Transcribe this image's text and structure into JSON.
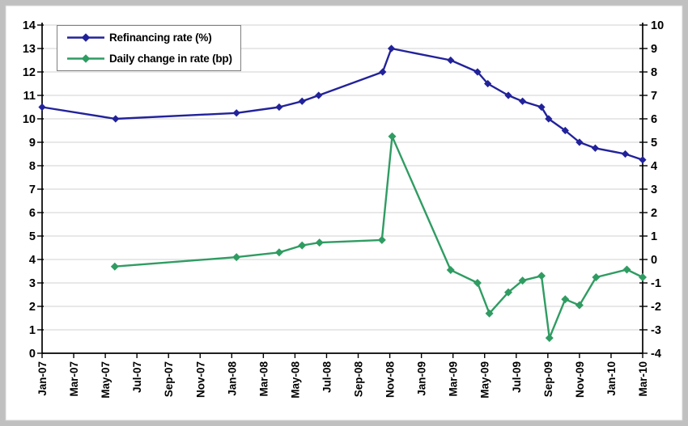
{
  "chart_data": {
    "type": "line",
    "title": "",
    "xlabel": "",
    "ylabel_left": "",
    "ylabel_right": "",
    "grid": "horizontal",
    "legend_position": "top-left",
    "x_axis": {
      "tick_labels": [
        "Jan-07",
        "Mar-07",
        "May-07",
        "Jul-07",
        "Sep-07",
        "Nov-07",
        "Jan-08",
        "Mar-08",
        "May-08",
        "Jul-08",
        "Sep-08",
        "Nov-08",
        "Jan-09",
        "Mar-09",
        "May-09",
        "Jul-09",
        "Sep-09",
        "Nov-09",
        "Jan-10",
        "Mar-10"
      ],
      "tick_interval_months": 2,
      "span_months": 38
    },
    "left_axis": {
      "min": 0,
      "max": 14,
      "step": 1,
      "ticks": [
        0,
        1,
        2,
        3,
        4,
        5,
        6,
        7,
        8,
        9,
        10,
        11,
        12,
        13,
        14
      ]
    },
    "right_axis": {
      "min": -4,
      "max": 10,
      "step": 1,
      "ticks": [
        -4,
        -3,
        -2,
        -1,
        0,
        1,
        2,
        3,
        4,
        5,
        6,
        7,
        8,
        9,
        10
      ]
    },
    "series": [
      {
        "name": "Refinancing rate (%)",
        "axis": "left",
        "color": "#22229b",
        "marker": "diamond",
        "points": [
          [
            0.0,
            10.5
          ],
          [
            4.65,
            10.0
          ],
          [
            12.3,
            10.25
          ],
          [
            15.0,
            10.5
          ],
          [
            16.45,
            10.75
          ],
          [
            17.5,
            11.0
          ],
          [
            21.55,
            12.0
          ],
          [
            22.1,
            13.0
          ],
          [
            25.85,
            12.5
          ],
          [
            27.55,
            12.0
          ],
          [
            28.2,
            11.5
          ],
          [
            29.5,
            11.0
          ],
          [
            30.4,
            10.75
          ],
          [
            31.6,
            10.5
          ],
          [
            32.05,
            10.0
          ],
          [
            33.1,
            9.5
          ],
          [
            34.0,
            9.0
          ],
          [
            35.0,
            8.75
          ],
          [
            36.9,
            8.5
          ],
          [
            38.0,
            8.25
          ]
        ]
      },
      {
        "name": "Daily change in rate (bp)",
        "axis": "right",
        "color": "#2f9c62",
        "marker": "diamond",
        "points": [
          [
            4.6,
            -0.3
          ],
          [
            12.3,
            0.1
          ],
          [
            15.0,
            0.3
          ],
          [
            16.45,
            0.6
          ],
          [
            17.55,
            0.72
          ],
          [
            21.5,
            0.83
          ],
          [
            22.15,
            5.25
          ],
          [
            25.85,
            -0.45
          ],
          [
            27.55,
            -1.0
          ],
          [
            28.3,
            -2.3
          ],
          [
            29.5,
            -1.4
          ],
          [
            30.4,
            -0.9
          ],
          [
            31.6,
            -0.7
          ],
          [
            32.1,
            -3.35
          ],
          [
            33.1,
            -1.7
          ],
          [
            34.0,
            -1.95
          ],
          [
            35.05,
            -0.76
          ],
          [
            37.0,
            -0.43
          ],
          [
            38.0,
            -0.76
          ]
        ]
      }
    ]
  },
  "legend": {
    "items": [
      {
        "label": "Refinancing rate (%)"
      },
      {
        "label": "Daily change in rate (bp)"
      }
    ]
  }
}
